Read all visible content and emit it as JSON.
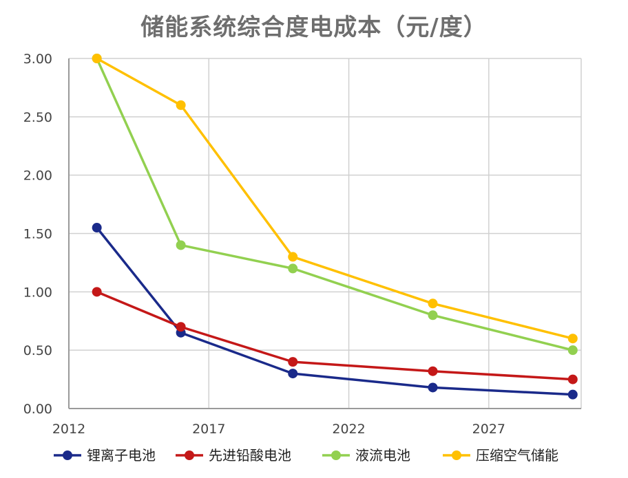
{
  "chart_data": {
    "type": "line",
    "title": "储能系统综合度电成本（元/度）",
    "xlabel": "",
    "ylabel": "",
    "xlim": [
      2012,
      2030.3
    ],
    "ylim": [
      0,
      3.0
    ],
    "x_ticks": [
      2012,
      2017,
      2022,
      2027
    ],
    "x_tick_labels": [
      "2012",
      "2017",
      "2022",
      "2027"
    ],
    "y_ticks": [
      0,
      0.5,
      1.0,
      1.5,
      2.0,
      2.5,
      3.0
    ],
    "y_tick_labels": [
      "0.00",
      "0.50",
      "1.00",
      "1.50",
      "2.00",
      "2.50",
      "3.00"
    ],
    "grid": true,
    "legend_position": "bottom",
    "series": [
      {
        "name": "锂离子电池",
        "color": "#1a2a8a",
        "x": [
          2013,
          2016,
          2020,
          2025,
          2030
        ],
        "values": [
          1.55,
          0.65,
          0.3,
          0.18,
          0.12
        ]
      },
      {
        "name": "先进铅酸电池",
        "color": "#c41818",
        "x": [
          2013,
          2016,
          2020,
          2025,
          2030
        ],
        "values": [
          1.0,
          0.7,
          0.4,
          0.32,
          0.25
        ]
      },
      {
        "name": "液流电池",
        "color": "#92d050",
        "x": [
          2013,
          2016,
          2020,
          2025,
          2030
        ],
        "values": [
          3.0,
          1.4,
          1.2,
          0.8,
          0.5
        ]
      },
      {
        "name": "压缩空气储能",
        "color": "#ffc000",
        "x": [
          2013,
          2016,
          2020,
          2025,
          2030
        ],
        "values": [
          3.0,
          2.6,
          1.3,
          0.9,
          0.6
        ]
      }
    ]
  }
}
